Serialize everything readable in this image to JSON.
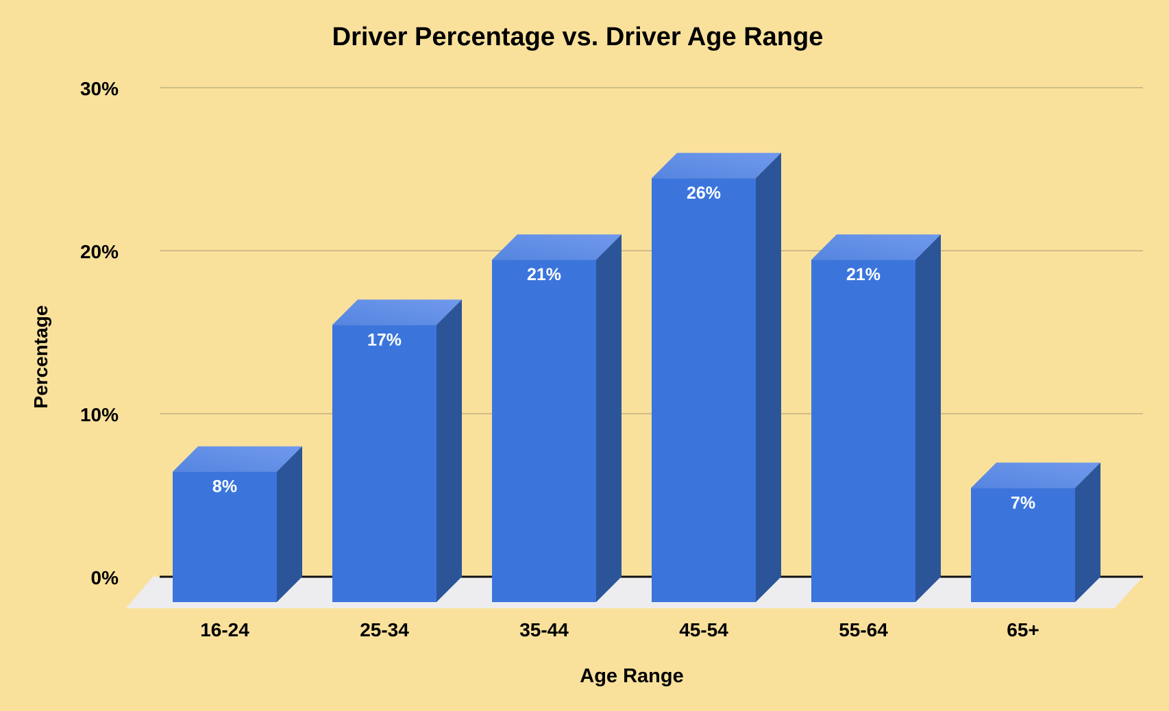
{
  "chart_data": {
    "type": "bar",
    "style": "3d-column",
    "title": "Driver Percentage vs. Driver Age Range",
    "xlabel": "Age Range",
    "ylabel": "Percentage",
    "categories": [
      "16-24",
      "25-34",
      "35-44",
      "45-54",
      "55-64",
      "65+"
    ],
    "values": [
      8,
      17,
      21,
      26,
      21,
      7
    ],
    "bar_labels": [
      "8%",
      "17%",
      "21%",
      "26%",
      "21%",
      "7%"
    ],
    "ylim": [
      0,
      30
    ],
    "ytick_values": [
      0,
      10,
      20,
      30
    ],
    "ytick_labels": [
      "0%",
      "10%",
      "20%",
      "30%"
    ],
    "grid": true,
    "legend": false
  },
  "colors": {
    "background": "#F9E19C",
    "bar_front": "#3B75DC",
    "bar_side": "#2B5499",
    "bar_top_front": "#5585E0",
    "bar_top_back": "#7099EC",
    "floor": "#EDEDEF",
    "gridline": "#CFBD87",
    "axis_line": "#111111",
    "label_text": "#000000",
    "bar_label_text": "#FFFFFF"
  }
}
